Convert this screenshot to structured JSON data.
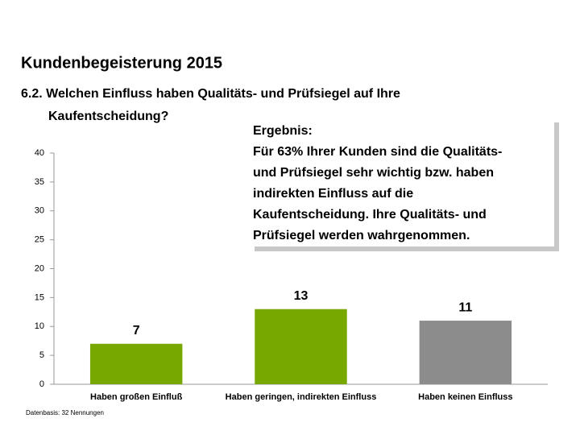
{
  "chart_data": {
    "type": "bar",
    "title": "Kundenbegeisterung 2015",
    "subtitle": [
      "6.2. Welchen Einfluss haben Qualitäts- und Prüfsiegel auf Ihre",
      "Kaufentscheidung?"
    ],
    "categories": [
      "Haben großen Einfluß",
      "Haben geringen, indirekten Einfluss",
      "Haben keinen Einfluss"
    ],
    "values": [
      7,
      13,
      11
    ],
    "colors": [
      "#76a800",
      "#76a800",
      "#8c8c8c"
    ],
    "ylim": [
      0,
      40
    ],
    "yticks": [
      0,
      5,
      10,
      15,
      20,
      25,
      30,
      35,
      40
    ],
    "grid": false,
    "annotation": [
      "Ergebnis:",
      "Für 63% Ihrer Kunden sind die Qualitäts-",
      "und Prüfsiegel sehr wichtig bzw. haben",
      "indirekten Einfluss auf die",
      "Kaufentscheidung. Ihre Qualitäts- und",
      "Prüfsiegel werden wahrgenommen."
    ],
    "source": "Datenbasis: 32 Nennungen"
  }
}
